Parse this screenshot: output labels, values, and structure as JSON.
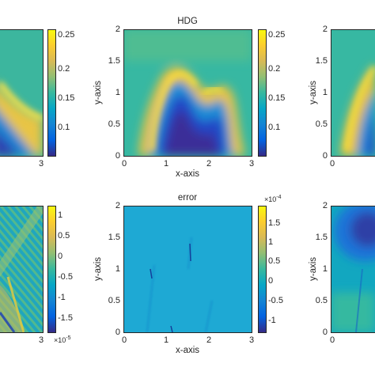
{
  "chart_data": [
    {
      "type": "heatmap",
      "title": "",
      "xlabel": "",
      "ylabel": "",
      "xlim": [
        0,
        3
      ],
      "ylim": [
        0,
        2
      ],
      "x_ticks_visible": [
        "3"
      ],
      "y_ticks_visible": [],
      "colorbar": {
        "range": [
          0.05,
          0.27
        ],
        "ticks": [
          "0.25",
          "0.2",
          "0.15",
          "0.1"
        ],
        "multiplier": ""
      },
      "colormap": "parula",
      "note": ""
    },
    {
      "type": "heatmap",
      "title": "HDG",
      "xlabel": "x-axis",
      "ylabel": "y-axis",
      "xlim": [
        0,
        3
      ],
      "ylim": [
        0,
        2
      ],
      "x_ticks": [
        "0",
        "1",
        "2",
        "3"
      ],
      "y_ticks": [
        "0",
        "0.5",
        "1",
        "1.5",
        "2"
      ],
      "colorbar": {
        "range": [
          0.05,
          0.27
        ],
        "ticks": [
          "0.25",
          "0.2",
          "0.15",
          "0.1"
        ],
        "multiplier": ""
      },
      "colormap": "parula"
    },
    {
      "type": "heatmap",
      "title": "",
      "xlabel": "",
      "ylabel": "y-axis",
      "xlim": [
        0,
        3
      ],
      "ylim": [
        0,
        2
      ],
      "x_ticks_visible": [
        "0"
      ],
      "y_ticks": [
        "0",
        "0.5",
        "1",
        "1.5",
        "2"
      ],
      "colormap": "parula"
    },
    {
      "type": "heatmap",
      "title": "",
      "xlabel": "",
      "ylabel": "",
      "xlim": [
        0,
        3
      ],
      "ylim": [
        0,
        2
      ],
      "x_ticks_visible": [
        "3"
      ],
      "colorbar": {
        "range": [
          -1.8,
          1.25
        ],
        "ticks": [
          "1",
          "0.5",
          "0",
          "-0.5",
          "-1",
          "-1.5"
        ],
        "multiplier": "×10",
        "multiplier_exp": "-5"
      },
      "colormap": "parula"
    },
    {
      "type": "heatmap",
      "title": "error",
      "xlabel": "x-axis",
      "ylabel": "y-axis",
      "xlim": [
        0,
        3
      ],
      "ylim": [
        0,
        2
      ],
      "x_ticks": [
        "0",
        "1",
        "2",
        "3"
      ],
      "y_ticks": [
        "0",
        "0.5",
        "1",
        "1.5",
        "2"
      ],
      "colorbar": {
        "range": [
          -1.25,
          1.9
        ],
        "ticks": [
          "1.5",
          "1",
          "0.5",
          "0",
          "-0.5",
          "-1"
        ],
        "multiplier": "×10",
        "multiplier_exp": "-4"
      },
      "colormap": "parula"
    },
    {
      "type": "heatmap",
      "title": "",
      "xlabel": "",
      "ylabel": "y-axis",
      "xlim": [
        0,
        3
      ],
      "ylim": [
        0,
        2
      ],
      "x_ticks_visible": [
        "0"
      ],
      "y_ticks": [
        "0",
        "0.5",
        "1",
        "1.5",
        "2"
      ],
      "colormap": "parula"
    }
  ],
  "colors": {
    "parula": [
      "#352a87",
      "#0363e1",
      "#1485d4",
      "#06a7c6",
      "#38b99e",
      "#92bf73",
      "#d9ba56",
      "#fcce2e",
      "#f9fb0e"
    ],
    "axis": "#262626"
  }
}
